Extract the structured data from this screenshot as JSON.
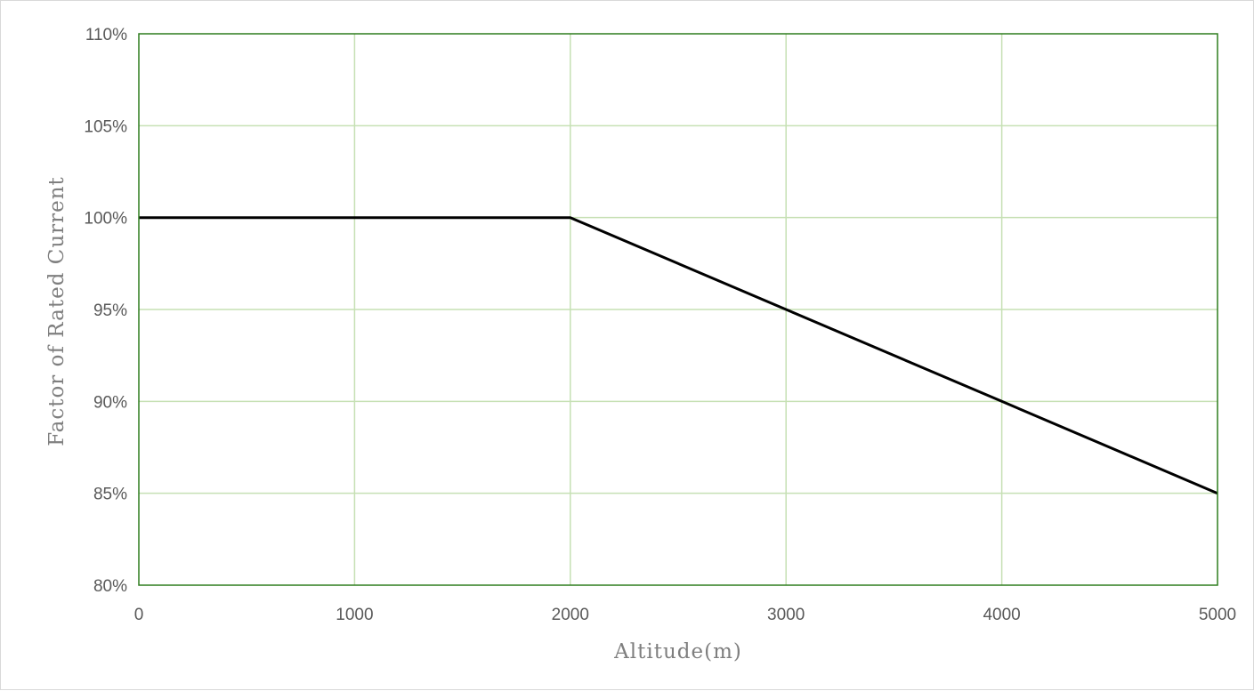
{
  "chart_data": {
    "type": "line",
    "title": "",
    "xlabel": "Altitude(m)",
    "ylabel": "Factor of Rated Current",
    "xlim": [
      0,
      5000
    ],
    "ylim": [
      80,
      110
    ],
    "x_ticks": [
      0,
      1000,
      2000,
      3000,
      4000,
      5000
    ],
    "x_tick_labels": [
      "0",
      "1000",
      "2000",
      "3000",
      "4000",
      "5000"
    ],
    "y_ticks": [
      80,
      85,
      90,
      95,
      100,
      105,
      110
    ],
    "y_tick_labels": [
      "80%",
      "85%",
      "90%",
      "95%",
      "100%",
      "105%",
      "110%"
    ],
    "grid": true,
    "legend": "none",
    "series": [
      {
        "color": "#000000",
        "x": [
          0,
          1000,
          2000,
          3000,
          4000,
          5000
        ],
        "y": [
          100,
          100,
          100,
          95,
          90,
          85
        ]
      }
    ],
    "colors": {
      "plot_border": "#2e7d1e",
      "grid": "#c6e0b4",
      "line": "#000000"
    }
  }
}
